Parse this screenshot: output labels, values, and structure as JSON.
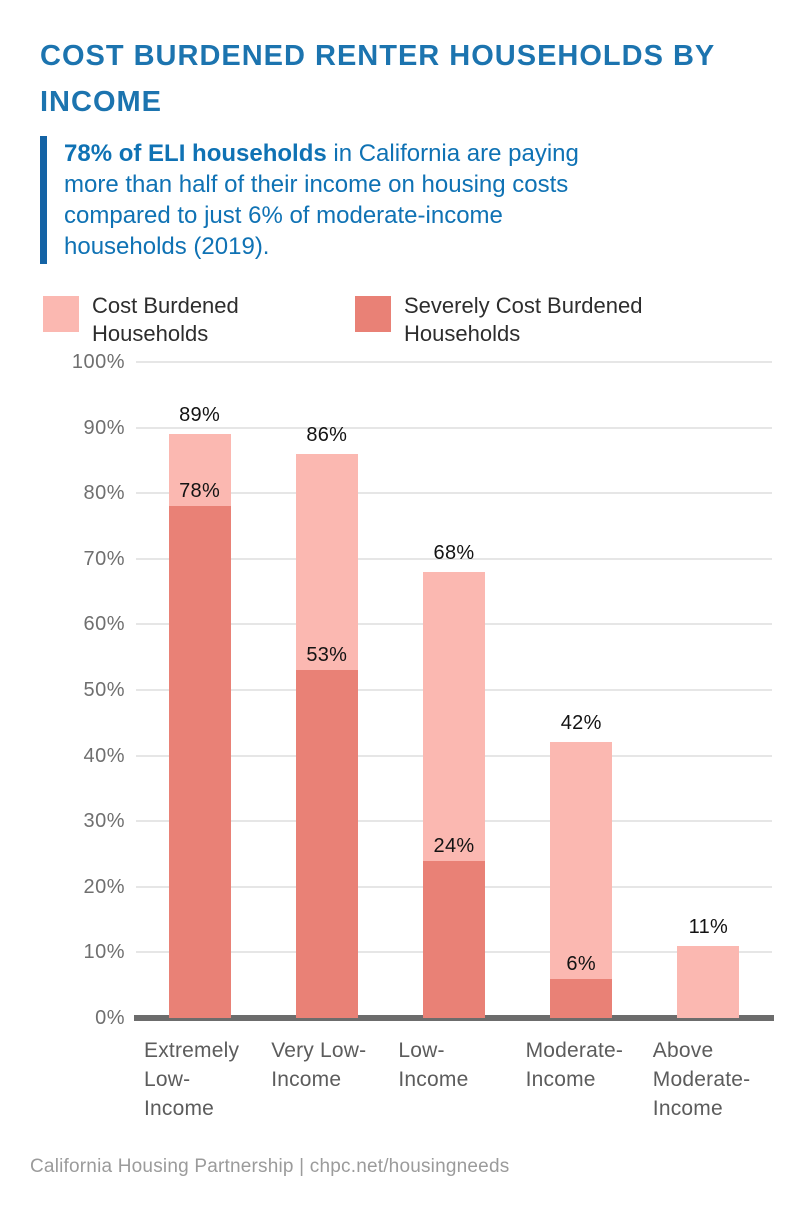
{
  "page": {
    "title": "COST BURDENED RENTER HOUSEHOLDS BY\nINCOME",
    "callout_bold": "78% of ELI households",
    "callout_rest": " in California are paying\nmore than half of their income on housing costs\ncompared to just 6% of moderate-income\nhouseholds (2019).",
    "footer": "California Housing Partnership | chpc.net/housingneeds"
  },
  "colors": {
    "title_blue": "#1C74AF",
    "callout_text_blue": "#0F72B4",
    "callout_bar_blue": "#1463A5",
    "cost_burdened_pink": "#FBB8B1",
    "severely_cost_burdened_salmon": "#E98176",
    "gridline_gray": "#E6E6E6",
    "baseline_gray": "#6C6C6C",
    "value_label_dark": "#131313",
    "tick_gray": "#6F6F6F",
    "xlabel_gray": "#5C5C5C",
    "footer_gray": "#9B9B9B"
  },
  "legend": {
    "items": [
      {
        "label": "Cost Burdened\nHouseholds",
        "color": "#FBB8B1"
      },
      {
        "label": "Severely Cost Burdened\nHouseholds",
        "color": "#E98176"
      }
    ]
  },
  "chart_data": {
    "type": "bar",
    "stacked": true,
    "title": "COST BURDENED RENTER HOUSEHOLDS BY INCOME",
    "subtitle": "78% of ELI households in California are paying more than half of their income on housing costs compared to just 6% of moderate-income households (2019).",
    "categories": [
      "Extremely\nLow-\nIncome",
      "Very Low-\nIncome",
      "Low-\nIncome",
      "Moderate-\nIncome",
      "Above\nModerate-\nIncome"
    ],
    "series": [
      {
        "name": "Cost Burdened Households",
        "values": [
          89,
          86,
          68,
          42,
          11
        ],
        "color": "#FBB8B1"
      },
      {
        "name": "Severely Cost Burdened Households",
        "values": [
          78,
          53,
          24,
          6,
          0
        ],
        "color": "#E98176"
      }
    ],
    "value_labels": {
      "total": [
        "89%",
        "86%",
        "68%",
        "42%",
        "11%"
      ],
      "severe": [
        "78%",
        "53%",
        "24%",
        "6%",
        ""
      ]
    },
    "ylabel_ticks": [
      "0%",
      "10%",
      "20%",
      "30%",
      "40%",
      "50%",
      "60%",
      "70%",
      "80%",
      "90%",
      "100%"
    ],
    "ylim": [
      0,
      100
    ],
    "grid": true,
    "legend_position": "top"
  }
}
